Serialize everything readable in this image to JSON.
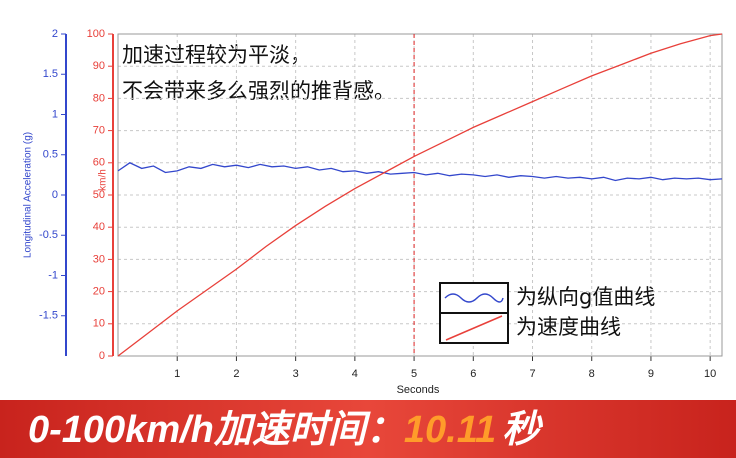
{
  "chart_data": {
    "type": "line",
    "y_label": "Longitudinal Acceleration (g)",
    "y2_label": "km/h",
    "x_label": "Seconds",
    "xlim": [
      0,
      10.2
    ],
    "xticks": [
      1,
      2,
      3,
      4,
      5,
      6,
      7,
      8,
      9,
      10
    ],
    "ylim": [
      -2,
      2
    ],
    "yticks": [
      -1.5,
      -1,
      -0.5,
      0,
      0.5,
      1,
      1.5,
      2
    ],
    "y2lim": [
      0,
      100
    ],
    "y2ticks": [
      0,
      10,
      20,
      30,
      40,
      50,
      60,
      70,
      80,
      90,
      100
    ],
    "grid": true,
    "highlight_x": 5,
    "annotations": [
      "加速过程较为平淡，",
      "不会带来多么强烈的推背感。"
    ],
    "series": [
      {
        "name": "为纵向g值曲线",
        "color": "#3347cc",
        "axis": "y",
        "x": [
          0,
          0.2,
          0.4,
          0.6,
          0.8,
          1,
          1.2,
          1.4,
          1.6,
          1.8,
          2,
          2.2,
          2.4,
          2.6,
          2.8,
          3,
          3.2,
          3.4,
          3.6,
          3.8,
          4,
          4.2,
          4.4,
          4.6,
          4.8,
          5,
          5.2,
          5.4,
          5.6,
          5.8,
          6,
          6.2,
          6.4,
          6.6,
          6.8,
          7,
          7.2,
          7.4,
          7.6,
          7.8,
          8,
          8.2,
          8.4,
          8.6,
          8.8,
          9,
          9.2,
          9.4,
          9.6,
          9.8,
          10,
          10.2
        ],
        "values": [
          0.3,
          0.4,
          0.33,
          0.36,
          0.28,
          0.3,
          0.35,
          0.33,
          0.38,
          0.35,
          0.37,
          0.34,
          0.38,
          0.35,
          0.36,
          0.33,
          0.35,
          0.31,
          0.33,
          0.29,
          0.3,
          0.27,
          0.29,
          0.26,
          0.27,
          0.28,
          0.25,
          0.27,
          0.24,
          0.26,
          0.25,
          0.23,
          0.25,
          0.22,
          0.24,
          0.23,
          0.21,
          0.23,
          0.21,
          0.22,
          0.2,
          0.22,
          0.18,
          0.21,
          0.2,
          0.22,
          0.19,
          0.21,
          0.2,
          0.21,
          0.19,
          0.2
        ]
      },
      {
        "name": "为速度曲线",
        "color": "#e8403a",
        "axis": "y2",
        "x": [
          0,
          0.5,
          1,
          1.5,
          2,
          2.5,
          3,
          3.5,
          4,
          4.5,
          5,
          5.5,
          6,
          6.5,
          7,
          7.5,
          8,
          8.5,
          9,
          9.5,
          10,
          10.2
        ],
        "values": [
          0,
          7,
          14,
          20.5,
          27,
          34,
          40.5,
          46.5,
          52,
          57,
          62,
          66.5,
          71,
          75,
          79,
          83,
          87,
          90.5,
          94,
          97,
          99.5,
          100
        ]
      }
    ],
    "banner": {
      "label": "0-100km/h加速时间：",
      "value": 10.11,
      "unit": "秒"
    }
  }
}
